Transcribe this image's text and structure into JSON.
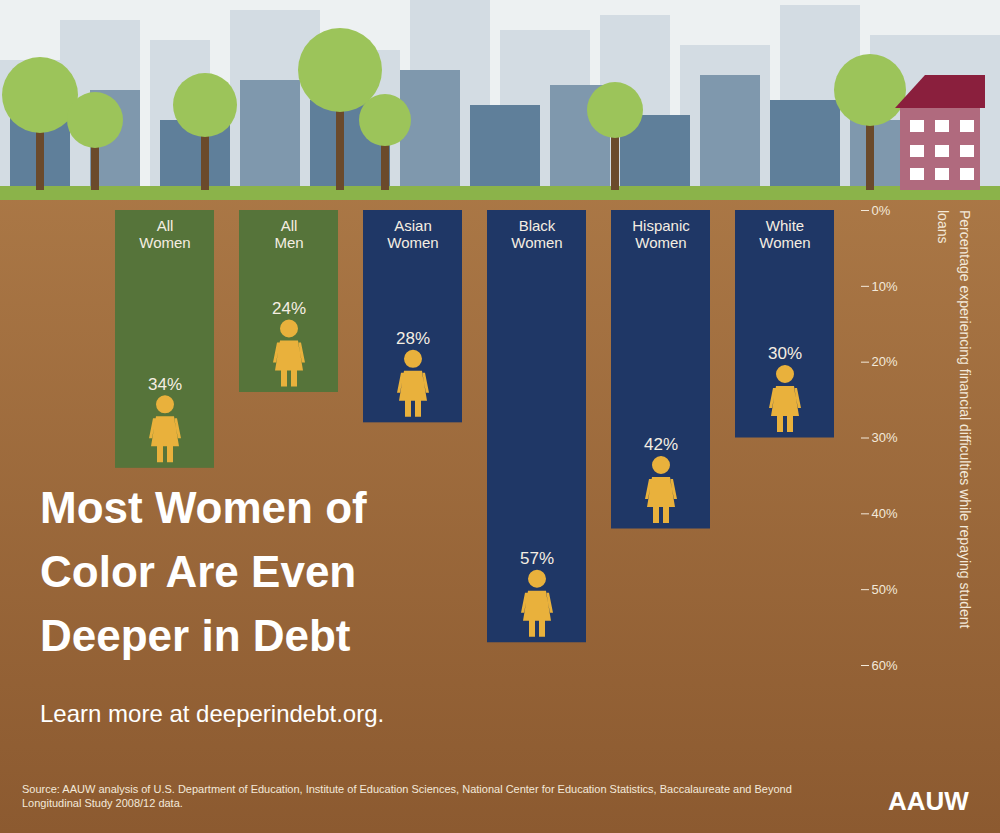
{
  "chart_data": {
    "type": "bar",
    "title": "Most Women of Color Are Even Deeper in Debt",
    "subtitle": "Learn more at deeperindebt.org.",
    "source": "Source: AAUW analysis of U.S. Department of Education, Institute of Education Sciences, National Center for Education Statistics, Baccalaureate and Beyond Longitudinal Study 2008/12 data.",
    "logo": "AAUW",
    "ylabel": "Percentage experiencing financial difficulties while repaying student loans",
    "categories": [
      "All Women",
      "All Men",
      "Asian Women",
      "Black Women",
      "Hispanic Women",
      "White Women"
    ],
    "values": [
      34,
      24,
      28,
      57,
      42,
      30
    ],
    "value_labels": [
      "34%",
      "24%",
      "28%",
      "57%",
      "42%",
      "30%"
    ],
    "colors": [
      "#56743a",
      "#56743a",
      "#1f3766",
      "#1f3766",
      "#1f3766",
      "#1f3766"
    ],
    "ylim": [
      0,
      60
    ],
    "yticks": [
      {
        "value": 0,
        "label": "0%"
      },
      {
        "value": 10,
        "label": "10%"
      },
      {
        "value": 20,
        "label": "20%"
      },
      {
        "value": 30,
        "label": "30%"
      },
      {
        "value": 40,
        "label": "40%"
      },
      {
        "value": 50,
        "label": "50%"
      },
      {
        "value": 60,
        "label": "60%"
      }
    ],
    "data_labels": true,
    "grid": false
  }
}
